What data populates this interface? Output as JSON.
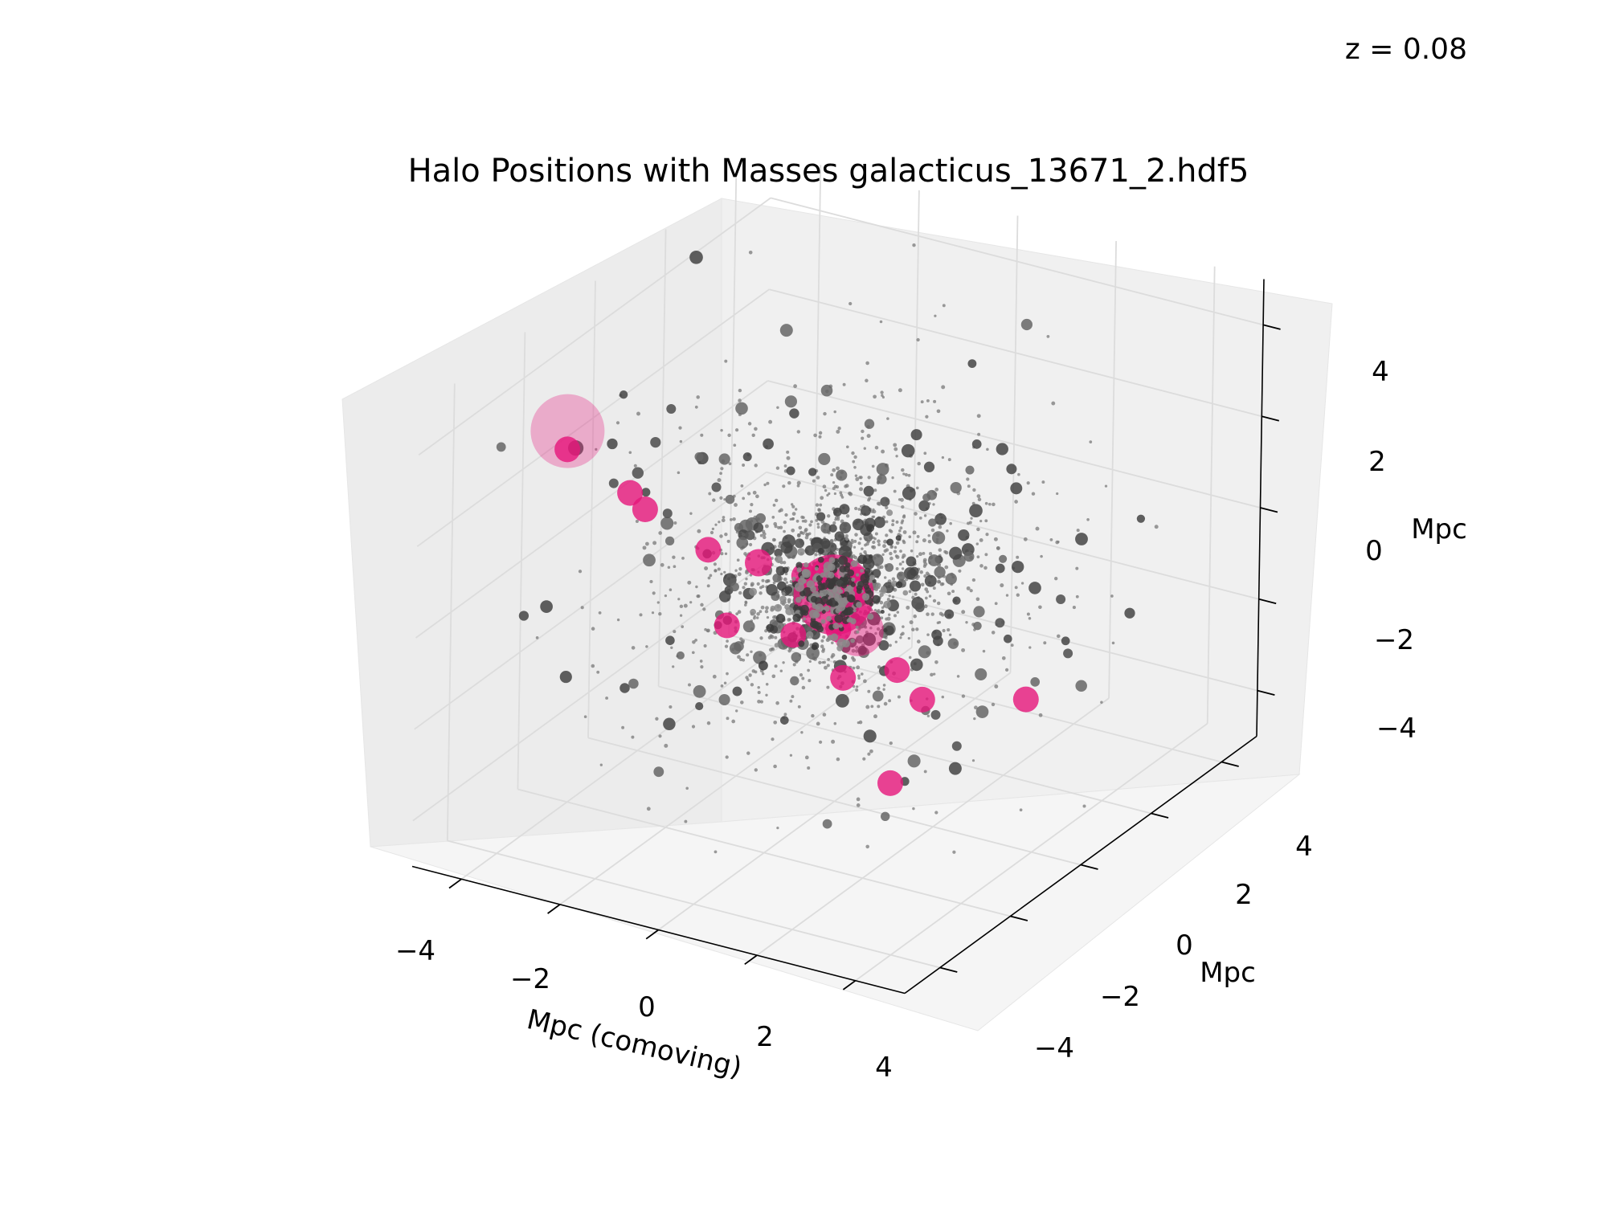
{
  "chart_data": {
    "type": "scatter",
    "title": "Halo Positions with Masses galacticus_13671_2.hdf5",
    "annotation": "z = 0.08",
    "xlabel": "Mpc (comoving)",
    "ylabel": "Mpc",
    "zlabel": "Mpc",
    "xlim": [
      -5,
      5
    ],
    "ylim": [
      -5,
      5
    ],
    "zlim": [
      -5,
      5
    ],
    "xticks": [
      -4,
      -2,
      0,
      2,
      4
    ],
    "yticks": [
      -4,
      -2,
      0,
      2,
      4
    ],
    "zticks": [
      -4,
      -2,
      0,
      2,
      4
    ],
    "xtick_labels": [
      "−4",
      "−2",
      "0",
      "2",
      "4"
    ],
    "ytick_labels": [
      "−4",
      "−2",
      "0",
      "2",
      "4"
    ],
    "ztick_labels": [
      "−4",
      "−2",
      "0",
      "2",
      "4"
    ],
    "grid": true,
    "colors": {
      "background_halos": "#555555",
      "highlighted_halos": "#e6157a",
      "pane": "#f2f2f2",
      "grid": "#dcdcdc"
    },
    "series": [
      {
        "role": "background halos (grey, sized by mass)",
        "points": [
          {
            "x": -2.6,
            "y": 3.9,
            "z": 4.2,
            "size": 1.6
          },
          {
            "x": -1.9,
            "y": 3.1,
            "z": 3.4,
            "size": 1.2
          },
          {
            "x": -1.4,
            "y": 4.5,
            "z": 4.1,
            "size": 1.0
          },
          {
            "x": -0.8,
            "y": 2.4,
            "z": 3.0,
            "size": 1.0
          },
          {
            "x": -3.1,
            "y": 0.9,
            "z": 2.5,
            "size": 1.1
          },
          {
            "x": -2.2,
            "y": 1.8,
            "z": 1.7,
            "size": 1.0
          },
          {
            "x": -4.2,
            "y": -1.1,
            "z": 1.8,
            "size": 1.0
          },
          {
            "x": 0.6,
            "y": 3.4,
            "z": 2.9,
            "size": 1.0
          },
          {
            "x": 1.4,
            "y": 2.6,
            "z": 2.4,
            "size": 1.0
          },
          {
            "x": 2.1,
            "y": 3.6,
            "z": 2.2,
            "size": 1.2
          },
          {
            "x": 3.6,
            "y": 4.6,
            "z": 2.6,
            "size": 1.0
          },
          {
            "x": 4.2,
            "y": 3.1,
            "z": -0.2,
            "size": 1.0
          },
          {
            "x": 2.4,
            "y": -3.0,
            "z": -1.6,
            "size": 1.0
          },
          {
            "x": 1.6,
            "y": -2.4,
            "z": -2.0,
            "size": 1.0
          },
          {
            "x": 3.9,
            "y": -1.1,
            "z": -1.3,
            "size": 1.0
          },
          {
            "x": 3.3,
            "y": 1.2,
            "z": -2.2,
            "size": 1.0
          },
          {
            "x": -0.4,
            "y": -1.0,
            "z": -2.2,
            "size": 1.0
          },
          {
            "x": 0.2,
            "y": 0.1,
            "z": 1.1,
            "size": 1.2
          },
          {
            "x": 0.9,
            "y": 0.8,
            "z": 0.4,
            "size": 1.0
          },
          {
            "x": -0.6,
            "y": 0.4,
            "z": -0.7,
            "size": 1.0
          },
          {
            "x": 1.1,
            "y": -0.8,
            "z": -0.9,
            "size": 1.0
          },
          {
            "x": -1.0,
            "y": -0.3,
            "z": 0.2,
            "size": 1.0
          },
          {
            "x": 0.4,
            "y": 1.5,
            "z": -0.4,
            "size": 1.0
          },
          {
            "x": -0.2,
            "y": -1.6,
            "z": 0.6,
            "size": 1.0
          }
        ]
      },
      {
        "role": "highlighted massive halos (magenta, sized by mass)",
        "points": [
          {
            "x": -2.7,
            "y": 4.0,
            "z": 4.6,
            "size": 4.6
          },
          {
            "x": -2.7,
            "y": 4.0,
            "z": 4.2,
            "size": 1.6
          },
          {
            "x": -1.7,
            "y": 3.6,
            "z": 3.3,
            "size": 1.6
          },
          {
            "x": -1.6,
            "y": 3.3,
            "z": 2.8,
            "size": 1.6
          },
          {
            "x": -0.1,
            "y": 3.6,
            "z": 2.5,
            "size": 1.6
          },
          {
            "x": 2.0,
            "y": 4.1,
            "z": 1.5,
            "size": 1.6
          },
          {
            "x": 0.3,
            "y": 1.4,
            "z": 0.8,
            "size": 1.6
          },
          {
            "x": -1.4,
            "y": 0.3,
            "z": 0.0,
            "size": 1.7
          },
          {
            "x": 0.2,
            "y": 0.4,
            "z": -0.2,
            "size": 5.0
          },
          {
            "x": 0.8,
            "y": 1.1,
            "z": -0.4,
            "size": 1.6
          },
          {
            "x": -0.7,
            "y": -0.6,
            "z": -0.5,
            "size": 1.6
          },
          {
            "x": -0.9,
            "y": -1.0,
            "z": -1.4,
            "size": 1.6
          },
          {
            "x": 0.0,
            "y": -0.6,
            "z": -1.6,
            "size": 3.2
          },
          {
            "x": -0.6,
            "y": -1.4,
            "z": -1.1,
            "size": 1.6
          },
          {
            "x": -1.0,
            "y": -1.8,
            "z": -1.6,
            "size": 1.6
          },
          {
            "x": -1.2,
            "y": -2.2,
            "z": -2.0,
            "size": 1.6
          },
          {
            "x": 0.1,
            "y": -1.6,
            "z": -3.0,
            "size": 1.6
          },
          {
            "x": 0.9,
            "y": -1.2,
            "z": -3.2,
            "size": 1.6
          },
          {
            "x": 2.6,
            "y": 2.1,
            "z": -2.7,
            "size": 1.6
          },
          {
            "x": 1.8,
            "y": -2.9,
            "z": -3.9,
            "size": 1.6
          },
          {
            "x": -0.4,
            "y": 2.6,
            "z": 0.2,
            "size": 1.6
          },
          {
            "x": 1.4,
            "y": 1.8,
            "z": -0.9,
            "size": 1.6
          }
        ]
      }
    ]
  }
}
